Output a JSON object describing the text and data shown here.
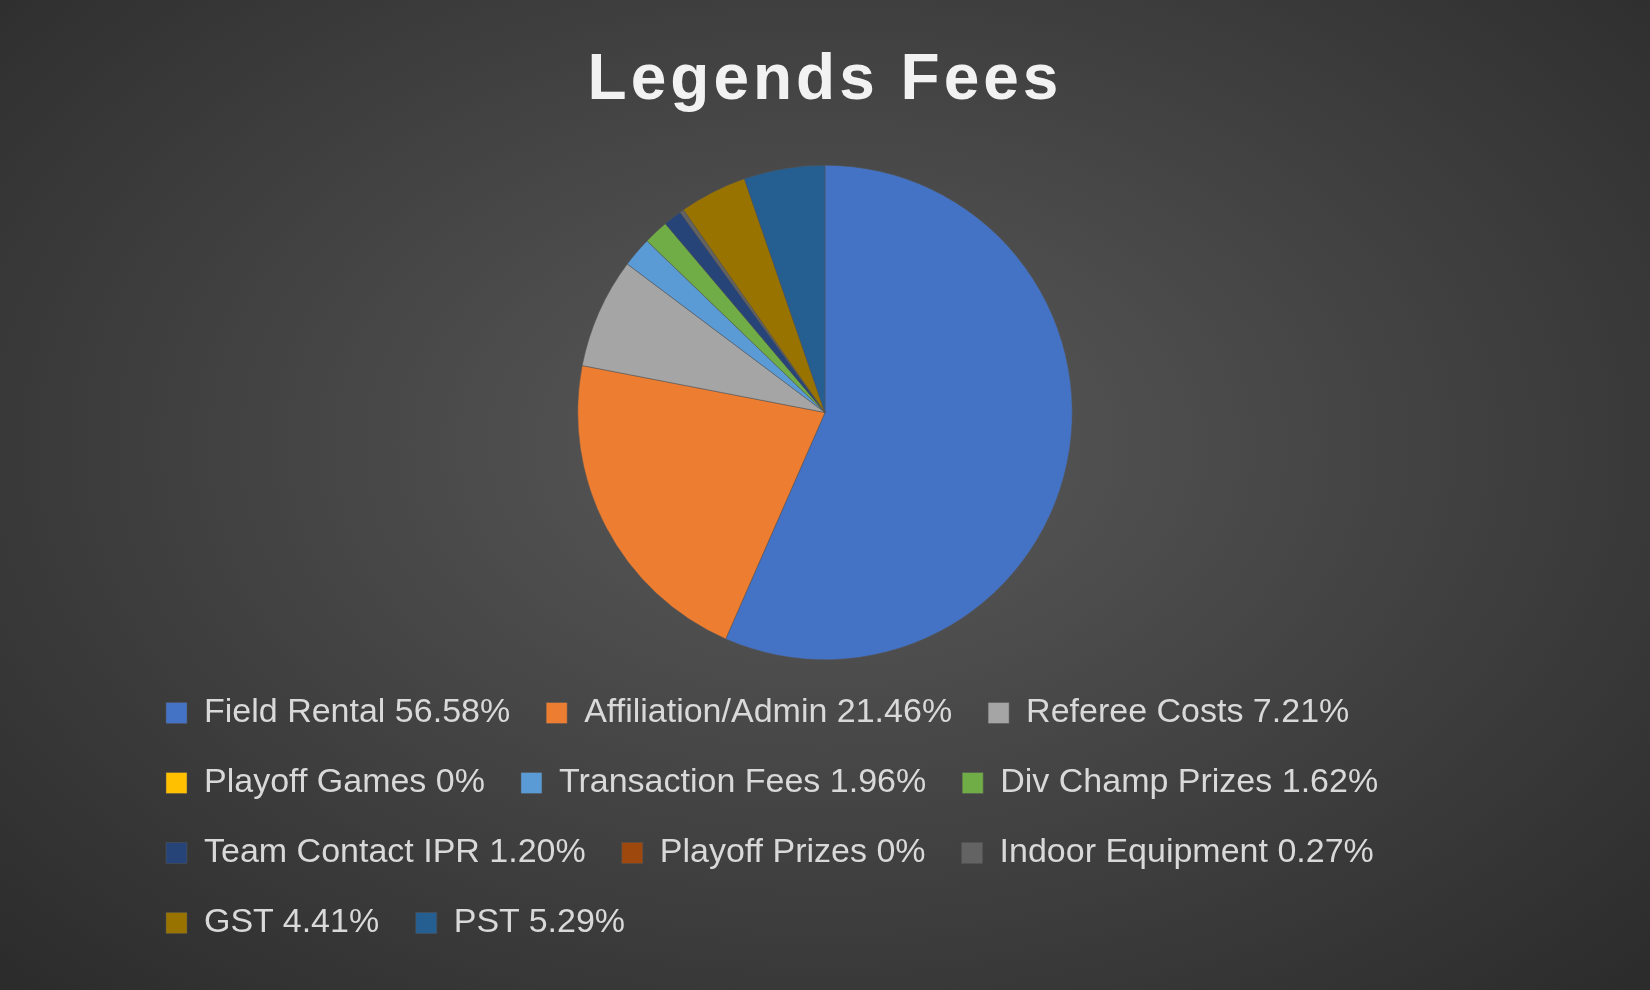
{
  "chart_data": {
    "type": "pie",
    "title": "Legends Fees",
    "categories": [
      "Field Rental 56.58%",
      "Affiliation/Admin 21.46%",
      "Referee Costs 7.21%",
      "Playoff Games 0%",
      "Transaction Fees 1.96%",
      "Div Champ Prizes 1.62%",
      "Team Contact IPR 1.20%",
      "Playoff Prizes 0%",
      "Indoor Equipment 0.27%",
      "GST 4.41%",
      "PST 5.29%"
    ],
    "values": [
      56.58,
      21.46,
      7.21,
      0,
      1.96,
      1.62,
      1.2,
      0,
      0.27,
      4.41,
      5.29
    ],
    "colors": [
      "#4472c4",
      "#ed7d31",
      "#a5a5a5",
      "#ffc000",
      "#5b9bd5",
      "#70ad47",
      "#264478",
      "#9e480e",
      "#636363",
      "#997300",
      "#255e91"
    ],
    "legend": "bottom"
  }
}
